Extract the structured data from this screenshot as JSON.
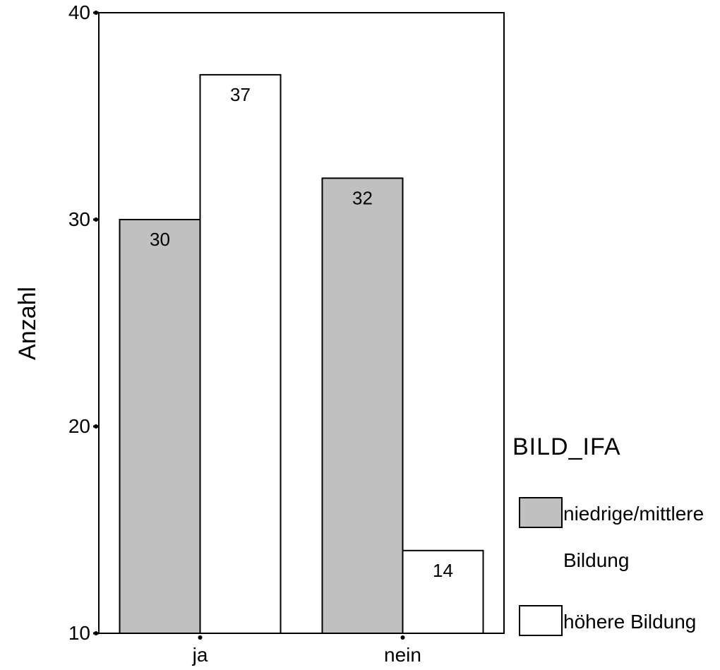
{
  "chart_data": {
    "type": "bar",
    "categories": [
      "ja",
      "nein"
    ],
    "series": [
      {
        "name": "niedrige/mittlere Bildung",
        "color": "#c0c0c0",
        "values": [
          30,
          32
        ]
      },
      {
        "name": "höhere Bildung",
        "color": "#ffffff",
        "values": [
          37,
          14
        ]
      }
    ],
    "ylabel": "Anzahl",
    "xlabel": "",
    "ylim": [
      10,
      40
    ],
    "yticks": [
      10,
      20,
      30,
      40
    ],
    "data_labels": true,
    "grid": false,
    "legend": {
      "title": "BILD_IFA",
      "placement": "right",
      "entries": [
        {
          "label_lines": [
            "niedrige/mittlere",
            "Bildung"
          ],
          "color": "#c0c0c0"
        },
        {
          "label_lines": [
            "höhere Bildung"
          ],
          "color": "#ffffff"
        }
      ]
    }
  }
}
